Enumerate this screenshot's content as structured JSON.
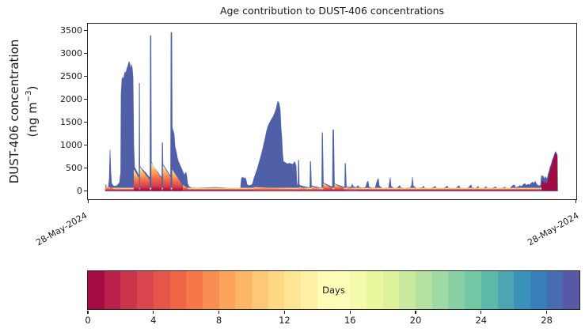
{
  "title": "Age contribution to DUST-406 concentrations",
  "y_axis": {
    "label_line1": "DUST-406 concentration",
    "label_line2_prefix": "(ng m",
    "label_line2_sup": "−3",
    "label_line2_suffix": ")",
    "ticks": [
      0,
      500,
      1000,
      1500,
      2000,
      2500,
      3000,
      3500
    ]
  },
  "x_axis": {
    "tick_labels": [
      "28-May-2024",
      "28-May-2024"
    ]
  },
  "colorbar": {
    "label": "Days",
    "ticks": [
      0,
      4,
      8,
      12,
      16,
      20,
      24,
      28
    ],
    "min": 0,
    "max": 30,
    "n_segments": 30,
    "spectral_anchors": [
      "#9e0142",
      "#d53e4f",
      "#f46d43",
      "#fdae61",
      "#fee08b",
      "#ffffbf",
      "#e6f598",
      "#abdda4",
      "#66c2a5",
      "#3288bd",
      "#5e4fa2"
    ]
  },
  "chart_data": {
    "type": "area",
    "title": "Age contribution to DUST-406 concentrations",
    "ylabel": "DUST-406 concentration (ng m⁻³)",
    "xlabel": "",
    "ylim": [
      0,
      3650
    ],
    "grid": false,
    "legend_position": "colorbar-bottom",
    "x_range_labels": [
      "28-May-2024",
      "28-May-2024"
    ],
    "colors": {
      "aged_envelope": "#4f60a8",
      "fresh_block": "#a00d44",
      "wedge_bottom": "#9e0142",
      "wedge_mid": "#f46d43",
      "wedge_top": "#fff3b0"
    },
    "envelope": [
      [
        0.0357,
        50
      ],
      [
        0.0373,
        140
      ],
      [
        0.0389,
        70
      ],
      [
        0.0421,
        90
      ],
      [
        0.0438,
        250
      ],
      [
        0.0454,
        900
      ],
      [
        0.047,
        400
      ],
      [
        0.0486,
        160
      ],
      [
        0.0519,
        110
      ],
      [
        0.0551,
        100
      ],
      [
        0.06,
        120
      ],
      [
        0.0648,
        180
      ],
      [
        0.0673,
        400
      ],
      [
        0.0681,
        2100
      ],
      [
        0.0697,
        2430
      ],
      [
        0.0713,
        2480
      ],
      [
        0.0729,
        2420
      ],
      [
        0.0746,
        2540
      ],
      [
        0.0762,
        2600
      ],
      [
        0.0778,
        2560
      ],
      [
        0.0794,
        2650
      ],
      [
        0.081,
        2700
      ],
      [
        0.0827,
        2760
      ],
      [
        0.0843,
        2820
      ],
      [
        0.0859,
        2780
      ],
      [
        0.0875,
        2630
      ],
      [
        0.0891,
        2760
      ],
      [
        0.0908,
        2690
      ],
      [
        0.0924,
        2480
      ],
      [
        0.094,
        1000
      ],
      [
        0.0956,
        520
      ],
      [
        0.0989,
        450
      ],
      [
        0.1021,
        380
      ],
      [
        0.1048,
        300
      ],
      [
        0.1053,
        2350
      ],
      [
        0.1058,
        2350
      ],
      [
        0.1063,
        540
      ],
      [
        0.1086,
        500
      ],
      [
        0.1134,
        450
      ],
      [
        0.1183,
        400
      ],
      [
        0.1232,
        330
      ],
      [
        0.1264,
        290
      ],
      [
        0.1272,
        300
      ],
      [
        0.128,
        3390
      ],
      [
        0.1292,
        3390
      ],
      [
        0.13,
        640
      ],
      [
        0.1329,
        560
      ],
      [
        0.1378,
        480
      ],
      [
        0.1426,
        420
      ],
      [
        0.1475,
        340
      ],
      [
        0.1507,
        300
      ],
      [
        0.1515,
        300
      ],
      [
        0.1523,
        1050
      ],
      [
        0.1531,
        1050
      ],
      [
        0.1537,
        580
      ],
      [
        0.1572,
        520
      ],
      [
        0.1621,
        440
      ],
      [
        0.167,
        360
      ],
      [
        0.1694,
        320
      ],
      [
        0.1702,
        3460
      ],
      [
        0.1718,
        3460
      ],
      [
        0.1726,
        1380
      ],
      [
        0.175,
        1300
      ],
      [
        0.1766,
        1240
      ],
      [
        0.1783,
        960
      ],
      [
        0.1799,
        900
      ],
      [
        0.1815,
        830
      ],
      [
        0.1831,
        720
      ],
      [
        0.1848,
        660
      ],
      [
        0.1864,
        620
      ],
      [
        0.188,
        580
      ],
      [
        0.1912,
        500
      ],
      [
        0.1945,
        420
      ],
      [
        0.1977,
        330
      ],
      [
        0.1994,
        390
      ],
      [
        0.201,
        400
      ],
      [
        0.2026,
        310
      ],
      [
        0.2042,
        150
      ],
      [
        0.2075,
        90
      ],
      [
        0.2123,
        70
      ],
      [
        0.222,
        62
      ],
      [
        0.235,
        68
      ],
      [
        0.248,
        74
      ],
      [
        0.2609,
        76
      ],
      [
        0.2739,
        72
      ],
      [
        0.2869,
        64
      ],
      [
        0.2998,
        56
      ],
      [
        0.3096,
        55
      ],
      [
        0.3128,
        70
      ],
      [
        0.3144,
        260
      ],
      [
        0.316,
        300
      ],
      [
        0.3177,
        270
      ],
      [
        0.3193,
        295
      ],
      [
        0.3209,
        255
      ],
      [
        0.3225,
        285
      ],
      [
        0.3241,
        230
      ],
      [
        0.3258,
        140
      ],
      [
        0.329,
        115
      ],
      [
        0.3339,
        125
      ],
      [
        0.3371,
        150
      ],
      [
        0.3403,
        280
      ],
      [
        0.3436,
        380
      ],
      [
        0.3468,
        480
      ],
      [
        0.3501,
        600
      ],
      [
        0.3533,
        720
      ],
      [
        0.3565,
        850
      ],
      [
        0.3598,
        1000
      ],
      [
        0.363,
        1150
      ],
      [
        0.3663,
        1320
      ],
      [
        0.3695,
        1430
      ],
      [
        0.3727,
        1500
      ],
      [
        0.376,
        1560
      ],
      [
        0.3792,
        1620
      ],
      [
        0.3825,
        1700
      ],
      [
        0.3857,
        1800
      ],
      [
        0.3873,
        1880
      ],
      [
        0.3889,
        1950
      ],
      [
        0.3906,
        1940
      ],
      [
        0.3922,
        1870
      ],
      [
        0.3938,
        1760
      ],
      [
        0.3954,
        1400
      ],
      [
        0.3971,
        1150
      ],
      [
        0.3987,
        800
      ],
      [
        0.4003,
        640
      ],
      [
        0.4036,
        620
      ],
      [
        0.4084,
        590
      ],
      [
        0.4133,
        605
      ],
      [
        0.4182,
        580
      ],
      [
        0.4214,
        600
      ],
      [
        0.423,
        640
      ],
      [
        0.4246,
        600
      ],
      [
        0.4263,
        550
      ],
      [
        0.4276,
        200
      ],
      [
        0.4287,
        120
      ],
      [
        0.4303,
        120
      ],
      [
        0.4311,
        670
      ],
      [
        0.4319,
        670
      ],
      [
        0.4327,
        140
      ],
      [
        0.4343,
        120
      ],
      [
        0.4408,
        100
      ],
      [
        0.4473,
        85
      ],
      [
        0.4522,
        75
      ],
      [
        0.4546,
        75
      ],
      [
        0.4554,
        640
      ],
      [
        0.4562,
        640
      ],
      [
        0.4578,
        120
      ],
      [
        0.4603,
        105
      ],
      [
        0.4668,
        90
      ],
      [
        0.4733,
        75
      ],
      [
        0.4781,
        70
      ],
      [
        0.4789,
        70
      ],
      [
        0.4797,
        1270
      ],
      [
        0.4805,
        1270
      ],
      [
        0.4821,
        180
      ],
      [
        0.4846,
        160
      ],
      [
        0.4911,
        130
      ],
      [
        0.4976,
        100
      ],
      [
        0.5008,
        90
      ],
      [
        0.5016,
        1330
      ],
      [
        0.5032,
        1330
      ],
      [
        0.5048,
        160
      ],
      [
        0.5089,
        140
      ],
      [
        0.5154,
        115
      ],
      [
        0.5219,
        90
      ],
      [
        0.5251,
        80
      ],
      [
        0.5259,
        80
      ],
      [
        0.5267,
        600
      ],
      [
        0.5275,
        600
      ],
      [
        0.5291,
        100
      ],
      [
        0.5332,
        80
      ],
      [
        0.5397,
        90
      ],
      [
        0.5413,
        150
      ],
      [
        0.5429,
        100
      ],
      [
        0.5494,
        70
      ],
      [
        0.5526,
        115
      ],
      [
        0.5559,
        75
      ],
      [
        0.5624,
        65
      ],
      [
        0.5689,
        80
      ],
      [
        0.5721,
        200
      ],
      [
        0.5737,
        210
      ],
      [
        0.5753,
        90
      ],
      [
        0.5818,
        65
      ],
      [
        0.5883,
        70
      ],
      [
        0.5932,
        250
      ],
      [
        0.5948,
        265
      ],
      [
        0.5964,
        110
      ],
      [
        0.6029,
        60
      ],
      [
        0.6094,
        65
      ],
      [
        0.6159,
        70
      ],
      [
        0.6191,
        290
      ],
      [
        0.6207,
        100
      ],
      [
        0.6272,
        60
      ],
      [
        0.6337,
        70
      ],
      [
        0.6386,
        115
      ],
      [
        0.6402,
        75
      ],
      [
        0.6467,
        60
      ],
      [
        0.6532,
        65
      ],
      [
        0.6597,
        70
      ],
      [
        0.6629,
        120
      ],
      [
        0.6645,
        300
      ],
      [
        0.6661,
        110
      ],
      [
        0.6726,
        60
      ],
      [
        0.6791,
        65
      ],
      [
        0.6856,
        75
      ],
      [
        0.6872,
        110
      ],
      [
        0.6888,
        70
      ],
      [
        0.6953,
        55
      ],
      [
        0.7034,
        60
      ],
      [
        0.7099,
        90
      ],
      [
        0.7115,
        100
      ],
      [
        0.7131,
        65
      ],
      [
        0.7212,
        55
      ],
      [
        0.7293,
        60
      ],
      [
        0.7358,
        105
      ],
      [
        0.7374,
        70
      ],
      [
        0.7455,
        55
      ],
      [
        0.7536,
        60
      ],
      [
        0.7601,
        115
      ],
      [
        0.7617,
        70
      ],
      [
        0.7698,
        55
      ],
      [
        0.7779,
        60
      ],
      [
        0.7844,
        130
      ],
      [
        0.786,
        75
      ],
      [
        0.7941,
        55
      ],
      [
        0.799,
        100
      ],
      [
        0.8006,
        65
      ],
      [
        0.8087,
        55
      ],
      [
        0.8152,
        90
      ],
      [
        0.8184,
        60
      ],
      [
        0.8265,
        55
      ],
      [
        0.8347,
        90
      ],
      [
        0.8379,
        60
      ],
      [
        0.846,
        55
      ],
      [
        0.8541,
        85
      ],
      [
        0.8557,
        60
      ],
      [
        0.8638,
        58
      ],
      [
        0.8703,
        120
      ],
      [
        0.8735,
        130
      ],
      [
        0.8751,
        75
      ],
      [
        0.8816,
        90
      ],
      [
        0.8849,
        120
      ],
      [
        0.8881,
        95
      ],
      [
        0.8914,
        140
      ],
      [
        0.8946,
        160
      ],
      [
        0.8978,
        120
      ],
      [
        0.9011,
        145
      ],
      [
        0.9043,
        130
      ],
      [
        0.9076,
        170
      ],
      [
        0.9108,
        190
      ],
      [
        0.914,
        160
      ],
      [
        0.9157,
        210
      ],
      [
        0.9173,
        180
      ],
      [
        0.9189,
        140
      ],
      [
        0.9222,
        120
      ],
      [
        0.9254,
        110
      ],
      [
        0.927,
        130
      ],
      [
        0.9287,
        340
      ],
      [
        0.9303,
        300
      ],
      [
        0.9319,
        330
      ],
      [
        0.9335,
        290
      ],
      [
        0.9351,
        260
      ],
      [
        0.9368,
        310
      ],
      [
        0.9384,
        280
      ],
      [
        0.94,
        260
      ],
      [
        0.9416,
        320
      ],
      [
        0.9432,
        400
      ],
      [
        0.9449,
        440
      ],
      [
        0.9465,
        530
      ],
      [
        0.9481,
        560
      ],
      [
        0.9497,
        620
      ],
      [
        0.9514,
        690
      ],
      [
        0.953,
        720
      ],
      [
        0.9546,
        780
      ],
      [
        0.9562,
        830
      ],
      [
        0.9578,
        855
      ],
      [
        0.9595,
        820
      ],
      [
        0.9611,
        780
      ],
      [
        0.9619,
        0
      ]
    ],
    "age_wedges": [
      [
        0.0373,
        110,
        0.057,
        25
      ],
      [
        0.094,
        470,
        0.1048,
        280
      ],
      [
        0.1065,
        520,
        0.1264,
        240
      ],
      [
        0.13,
        620,
        0.151,
        270
      ],
      [
        0.1537,
        560,
        0.1694,
        300
      ],
      [
        0.1726,
        470,
        0.1945,
        110
      ],
      [
        0.195,
        130,
        0.206,
        40
      ],
      [
        0.34,
        85,
        0.428,
        35
      ],
      [
        0.433,
        85,
        0.454,
        30
      ],
      [
        0.458,
        95,
        0.4785,
        35
      ],
      [
        0.4822,
        165,
        0.501,
        55
      ],
      [
        0.5049,
        150,
        0.5255,
        45
      ],
      [
        0.5292,
        85,
        0.549,
        28
      ]
    ],
    "fresh_event": [
      [
        0.9287,
        150
      ],
      [
        0.9303,
        200
      ],
      [
        0.9319,
        230
      ],
      [
        0.9335,
        190
      ],
      [
        0.9351,
        160
      ],
      [
        0.9368,
        200
      ],
      [
        0.9384,
        180
      ],
      [
        0.94,
        170
      ],
      [
        0.9416,
        240
      ],
      [
        0.9432,
        330
      ],
      [
        0.9449,
        390
      ],
      [
        0.9465,
        480
      ],
      [
        0.9481,
        520
      ],
      [
        0.9497,
        580
      ],
      [
        0.9514,
        650
      ],
      [
        0.953,
        690
      ],
      [
        0.9546,
        750
      ],
      [
        0.9562,
        800
      ],
      [
        0.9578,
        830
      ],
      [
        0.9595,
        795
      ],
      [
        0.9611,
        750
      ]
    ],
    "baseline_extent": [
      0.0357,
      0.9611
    ]
  }
}
